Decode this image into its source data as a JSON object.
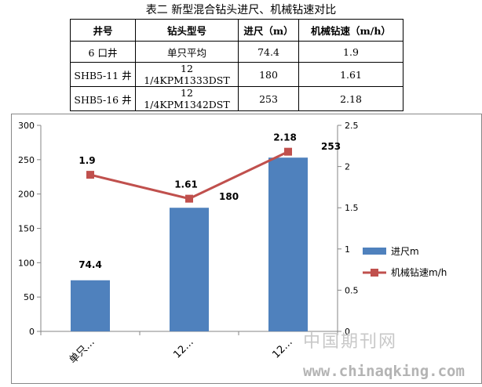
{
  "caption": "表二  新型混合钻头进尺、机械钻速对比",
  "table": {
    "headers": [
      "井号",
      "钻头型号",
      "进尺（m）",
      "机械钻速（m/h）"
    ],
    "rows": [
      [
        "6 口井",
        "单只平均",
        "74.4",
        "1.9"
      ],
      [
        "SHB5-11 井",
        "12 1/4KPM1333DST",
        "180",
        "1.61"
      ],
      [
        "SHB5-16 井",
        "12 1/4KPM1342DST",
        "253",
        "2.18"
      ]
    ]
  },
  "chart_data": {
    "type": "bar",
    "categories": [
      "单只…",
      "12…",
      "12…"
    ],
    "series": [
      {
        "name": "进尺m",
        "type": "bar",
        "axis": "left",
        "color": "#4F81BD",
        "values": [
          74.4,
          180,
          253
        ]
      },
      {
        "name": "机械钻速m/h",
        "type": "line",
        "axis": "right",
        "color": "#C0504D",
        "values": [
          1.9,
          1.61,
          2.18
        ]
      }
    ],
    "y_left": {
      "min": 0,
      "max": 300,
      "ticks": [
        0,
        50,
        100,
        150,
        200,
        250,
        300
      ]
    },
    "y_right": {
      "min": 0,
      "max": 2.5,
      "ticks": [
        "0",
        "0.5",
        "1",
        "1.5",
        "2",
        "2.5"
      ]
    },
    "grid": false,
    "legend_position": "right"
  },
  "watermark": {
    "line1": "中国期刊网",
    "line2": "www.chinaqking.com"
  }
}
